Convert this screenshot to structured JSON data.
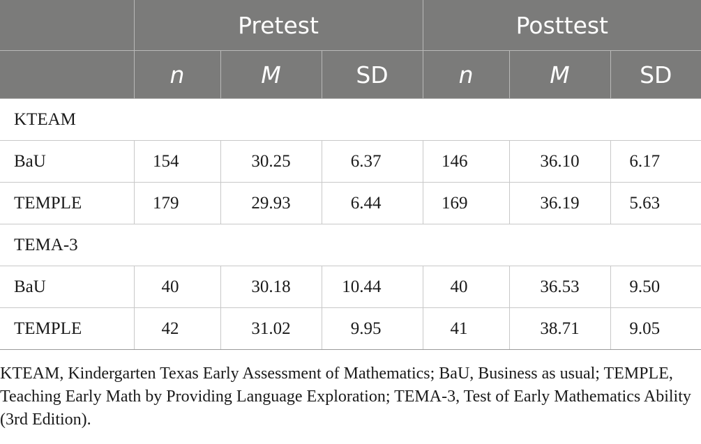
{
  "table": {
    "group_headers": [
      "Pretest",
      "Posttest"
    ],
    "col_headers": [
      "n",
      "M",
      "SD",
      "n",
      "M",
      "SD"
    ],
    "sections": [
      {
        "label": "KTEAM",
        "rows": [
          {
            "label": "BaU",
            "values": [
              "154",
              "30.25",
              "6.37",
              "146",
              "36.10",
              "6.17"
            ]
          },
          {
            "label": "TEMPLE",
            "values": [
              "179",
              "29.93",
              "6.44",
              "169",
              "36.19",
              "5.63"
            ]
          }
        ]
      },
      {
        "label": "TEMA-3",
        "rows": [
          {
            "label": "BaU",
            "values": [
              "40",
              "30.18",
              "10.44",
              "40",
              "36.53",
              "9.50"
            ]
          },
          {
            "label": "TEMPLE",
            "values": [
              "42",
              "31.02",
              "9.95",
              "41",
              "38.71",
              "9.05"
            ]
          }
        ]
      }
    ]
  },
  "footnote": "KTEAM, Kindergarten Texas Early Assessment of Mathematics; BaU, Business as usual; TEMPLE, Teaching Early Math by Providing Language Exploration; TEMA-3, Test of Early Mathematics Ability (3rd Edition).",
  "colors": {
    "header_bg": "#7b7b7a",
    "header_text": "#ffffff",
    "grid": "#c8c8c8"
  }
}
